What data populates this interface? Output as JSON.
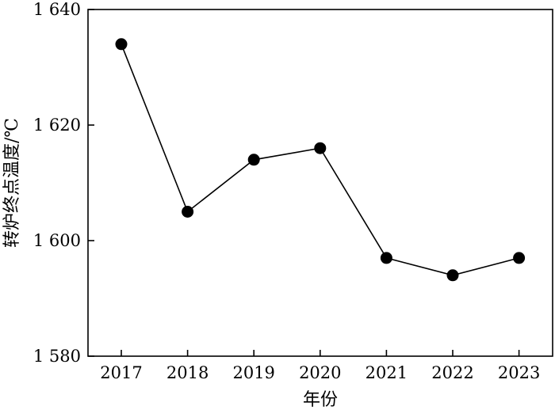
{
  "chart_data": {
    "type": "line",
    "title": "",
    "xlabel": "年份",
    "ylabel": "转炉终点温度/℃",
    "categories": [
      "2017",
      "2018",
      "2019",
      "2020",
      "2021",
      "2022",
      "2023"
    ],
    "y_ticks": [
      "1 580",
      "1 600",
      "1 620",
      "1 640"
    ],
    "y_tick_values": [
      1580,
      1600,
      1620,
      1640
    ],
    "ylim": [
      1580,
      1640
    ],
    "grid": false,
    "series": [
      {
        "values": [
          1634,
          1605,
          1614,
          1616,
          1597,
          1594,
          1597
        ]
      }
    ],
    "colors": {
      "line": "#000000",
      "marker": "#000000",
      "axes": "#000000"
    }
  }
}
